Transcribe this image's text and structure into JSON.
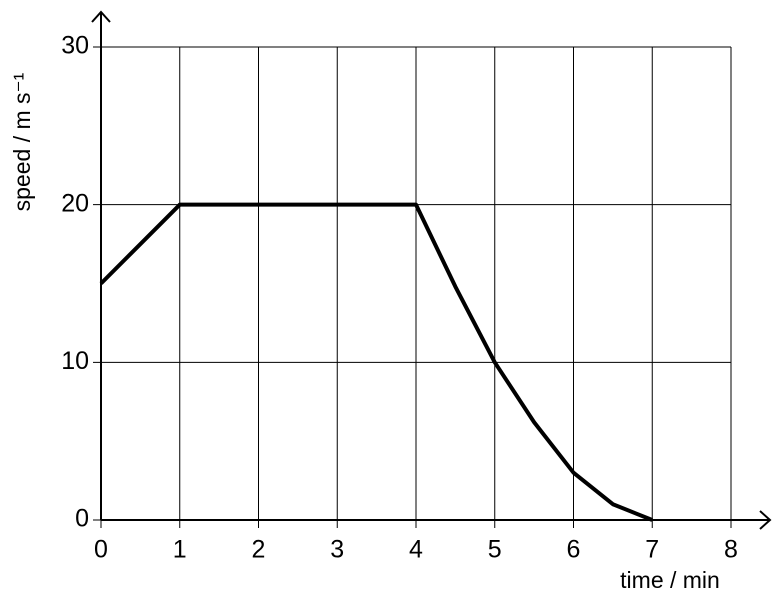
{
  "chart_data": {
    "type": "line",
    "x_label": "time / min",
    "y_label": "speed / m s⁻¹",
    "x": [
      0,
      1,
      4,
      4.5,
      5,
      5.5,
      6,
      6.5,
      7
    ],
    "series": [
      {
        "color": "#000000",
        "values": [
          15,
          20,
          20,
          14.8,
          10,
          6.2,
          3,
          1,
          0
        ]
      }
    ],
    "xlim": [
      0,
      8
    ],
    "ylim": [
      0,
      30
    ],
    "xticks": [
      0,
      1,
      2,
      3,
      4,
      5,
      6,
      7,
      8
    ],
    "yticks": [
      0,
      10,
      20,
      30
    ],
    "grid": true
  }
}
